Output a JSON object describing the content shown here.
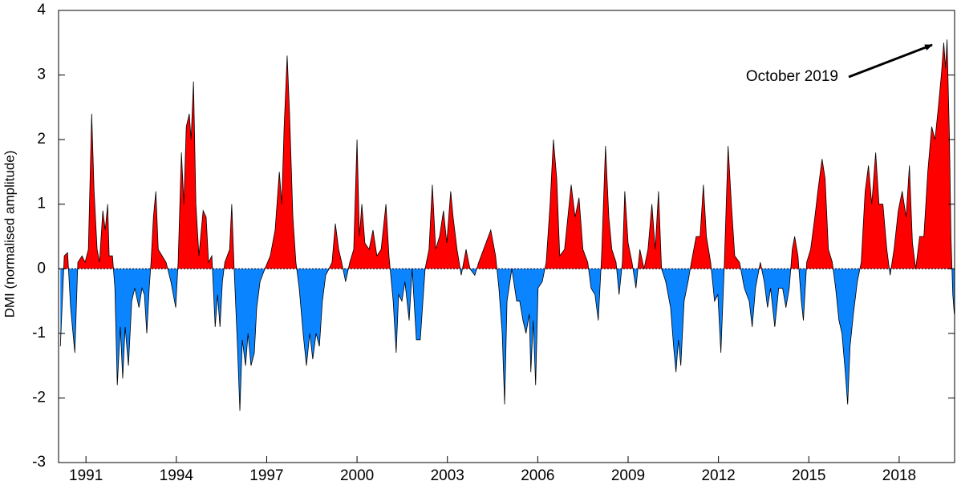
{
  "chart_data": {
    "type": "area",
    "ylabel": "DMI (normalised amplitude)",
    "annotation": "October 2019",
    "positive_color": "#ff0000",
    "negative_color": "#0a84ff",
    "line_color": "#000000",
    "xlim": [
      1990.09,
      2019.84
    ],
    "ylim": [
      -3,
      4
    ],
    "xticks": [
      1991,
      1994,
      1997,
      2000,
      2003,
      2006,
      2009,
      2012,
      2015,
      2018
    ],
    "yticks": [
      -3,
      -2,
      -1,
      0,
      1,
      2,
      3,
      4
    ],
    "x": [
      1990.15,
      1990.28,
      1990.39,
      1990.49,
      1990.63,
      1990.73,
      1990.87,
      1990.97,
      1991.08,
      1991.19,
      1991.27,
      1991.37,
      1991.45,
      1991.56,
      1991.64,
      1991.72,
      1991.77,
      1991.88,
      1991.96,
      1992.04,
      1992.14,
      1992.22,
      1992.3,
      1992.41,
      1992.52,
      1992.62,
      1992.76,
      1992.86,
      1992.94,
      1993.02,
      1993.1,
      1993.16,
      1993.24,
      1993.32,
      1993.4,
      1993.53,
      1993.66,
      1993.82,
      1993.98,
      1994.06,
      1994.17,
      1994.25,
      1994.33,
      1994.43,
      1994.49,
      1994.57,
      1994.65,
      1994.75,
      1994.89,
      1994.99,
      1995.07,
      1995.18,
      1995.29,
      1995.37,
      1995.45,
      1995.53,
      1995.61,
      1995.77,
      1995.84,
      1995.92,
      1996.03,
      1996.11,
      1996.19,
      1996.3,
      1996.38,
      1996.48,
      1996.59,
      1996.67,
      1996.78,
      1996.94,
      1997.12,
      1997.28,
      1997.42,
      1997.5,
      1997.58,
      1997.68,
      1997.76,
      1997.87,
      1997.97,
      1998.08,
      1998.21,
      1998.32,
      1998.43,
      1998.53,
      1998.64,
      1998.75,
      1998.85,
      1998.96,
      1999.07,
      1999.17,
      1999.28,
      1999.39,
      1999.49,
      1999.62,
      1999.76,
      1999.89,
      2000.0,
      2000.08,
      2000.16,
      2000.26,
      2000.4,
      2000.53,
      2000.66,
      2000.8,
      2000.96,
      2001.06,
      2001.2,
      2001.3,
      2001.38,
      2001.49,
      2001.59,
      2001.73,
      2001.83,
      2001.97,
      2002.1,
      2002.26,
      2002.39,
      2002.5,
      2002.61,
      2002.74,
      2002.87,
      2002.98,
      2003.11,
      2003.19,
      2003.32,
      2003.46,
      2003.62,
      2003.75,
      2003.91,
      2004.04,
      2004.2,
      2004.44,
      2004.6,
      2004.71,
      2004.82,
      2004.9,
      2004.98,
      2005.14,
      2005.3,
      2005.4,
      2005.51,
      2005.61,
      2005.72,
      2005.77,
      2005.85,
      2005.93,
      2006.01,
      2006.15,
      2006.28,
      2006.41,
      2006.52,
      2006.63,
      2006.73,
      2006.89,
      2007.0,
      2007.11,
      2007.24,
      2007.37,
      2007.5,
      2007.66,
      2007.77,
      2007.9,
      2008.01,
      2008.12,
      2008.25,
      2008.36,
      2008.46,
      2008.6,
      2008.7,
      2008.81,
      2008.89,
      2009.0,
      2009.13,
      2009.26,
      2009.39,
      2009.53,
      2009.66,
      2009.79,
      2009.9,
      2010.01,
      2010.11,
      2010.25,
      2010.41,
      2010.51,
      2010.59,
      2010.67,
      2010.75,
      2010.86,
      2010.99,
      2011.1,
      2011.26,
      2011.39,
      2011.5,
      2011.6,
      2011.74,
      2011.87,
      2011.98,
      2012.08,
      2012.19,
      2012.32,
      2012.43,
      2012.54,
      2012.7,
      2012.86,
      2013.02,
      2013.12,
      2013.23,
      2013.39,
      2013.52,
      2013.63,
      2013.73,
      2013.87,
      2014.0,
      2014.13,
      2014.24,
      2014.35,
      2014.45,
      2014.53,
      2014.64,
      2014.75,
      2014.82,
      2014.93,
      2015.06,
      2015.2,
      2015.3,
      2015.44,
      2015.54,
      2015.65,
      2015.78,
      2015.89,
      2016.0,
      2016.1,
      2016.21,
      2016.29,
      2016.37,
      2016.48,
      2016.61,
      2016.74,
      2016.87,
      2016.98,
      2017.09,
      2017.22,
      2017.33,
      2017.46,
      2017.59,
      2017.7,
      2017.83,
      2017.97,
      2018.1,
      2018.23,
      2018.34,
      2018.44,
      2018.55,
      2018.68,
      2018.82,
      2018.95,
      2019.08,
      2019.19,
      2019.3,
      2019.4,
      2019.48,
      2019.54,
      2019.59,
      2019.67,
      2019.72,
      2019.78,
      2019.83
    ],
    "values": [
      -1.2,
      0.2,
      0.25,
      -0.6,
      -1.3,
      0.1,
      0.2,
      0.1,
      0.3,
      2.4,
      1.2,
      0.3,
      0.1,
      0.9,
      0.6,
      1.0,
      0.2,
      0.2,
      -0.3,
      -1.8,
      -0.9,
      -1.7,
      -0.9,
      -1.5,
      -0.5,
      -0.3,
      -0.6,
      -0.3,
      -0.4,
      -1.0,
      -0.3,
      0.1,
      0.8,
      1.2,
      0.3,
      0.2,
      0.1,
      -0.2,
      -0.6,
      0.1,
      1.8,
      1.0,
      2.2,
      2.4,
      2.0,
      2.9,
      1.0,
      0.2,
      0.9,
      0.8,
      0.1,
      0.2,
      -0.9,
      -0.4,
      -0.9,
      -0.2,
      0.1,
      0.3,
      1.0,
      0.0,
      -1.2,
      -2.2,
      -1.1,
      -1.5,
      -1.0,
      -1.5,
      -1.3,
      -0.6,
      -0.2,
      0.0,
      0.2,
      0.6,
      1.5,
      1.0,
      2.2,
      3.3,
      2.4,
      0.8,
      0.1,
      -0.3,
      -1.0,
      -1.5,
      -1.0,
      -1.4,
      -1.0,
      -1.2,
      -0.5,
      -0.1,
      0.0,
      0.1,
      0.7,
      0.3,
      0.1,
      -0.2,
      0.1,
      0.3,
      2.0,
      0.5,
      1.0,
      0.4,
      0.3,
      0.6,
      0.2,
      0.3,
      1.0,
      0.2,
      -0.5,
      -1.3,
      -0.4,
      -0.5,
      -0.2,
      -0.8,
      0.0,
      -1.1,
      -1.1,
      0.0,
      0.3,
      1.3,
      0.3,
      0.5,
      0.9,
      0.4,
      1.2,
      0.8,
      0.3,
      -0.1,
      0.3,
      0.0,
      -0.1,
      0.1,
      0.3,
      0.6,
      0.2,
      -0.3,
      -1.0,
      -2.1,
      -0.5,
      0.0,
      -0.5,
      -0.5,
      -0.8,
      -1.0,
      -0.7,
      -1.6,
      -0.8,
      -1.8,
      -0.3,
      -0.2,
      0.1,
      1.0,
      2.0,
      1.4,
      0.2,
      0.3,
      0.8,
      1.3,
      0.8,
      1.1,
      0.3,
      0.1,
      -0.3,
      -0.4,
      -0.8,
      0.2,
      1.9,
      0.8,
      0.3,
      0.1,
      -0.4,
      0.1,
      1.2,
      0.4,
      0.1,
      -0.3,
      0.3,
      0.0,
      0.3,
      1.0,
      0.3,
      1.2,
      0.0,
      -0.2,
      -0.6,
      -1.2,
      -1.6,
      -1.1,
      -1.5,
      -0.5,
      -0.2,
      0.1,
      0.5,
      0.5,
      1.3,
      0.5,
      0.1,
      -0.5,
      -0.4,
      -1.3,
      0.0,
      1.9,
      1.0,
      0.2,
      0.1,
      -0.3,
      -0.5,
      -0.9,
      -0.3,
      0.1,
      -0.2,
      -0.6,
      -0.3,
      -0.9,
      -0.3,
      -0.3,
      -0.6,
      -0.3,
      0.3,
      0.5,
      0.2,
      -0.5,
      -0.8,
      0.1,
      0.3,
      0.8,
      1.2,
      1.7,
      1.4,
      0.3,
      0.1,
      -0.3,
      -0.8,
      -1.0,
      -1.6,
      -2.1,
      -1.2,
      -0.7,
      -0.2,
      0.1,
      1.2,
      1.6,
      1.0,
      1.8,
      1.0,
      1.0,
      0.3,
      -0.1,
      0.3,
      0.9,
      1.2,
      0.8,
      1.6,
      0.4,
      0.0,
      0.5,
      0.5,
      1.5,
      2.2,
      2.0,
      2.5,
      3.0,
      3.5,
      3.1,
      3.55,
      2.0,
      0.5,
      -0.4,
      -0.7
    ]
  }
}
